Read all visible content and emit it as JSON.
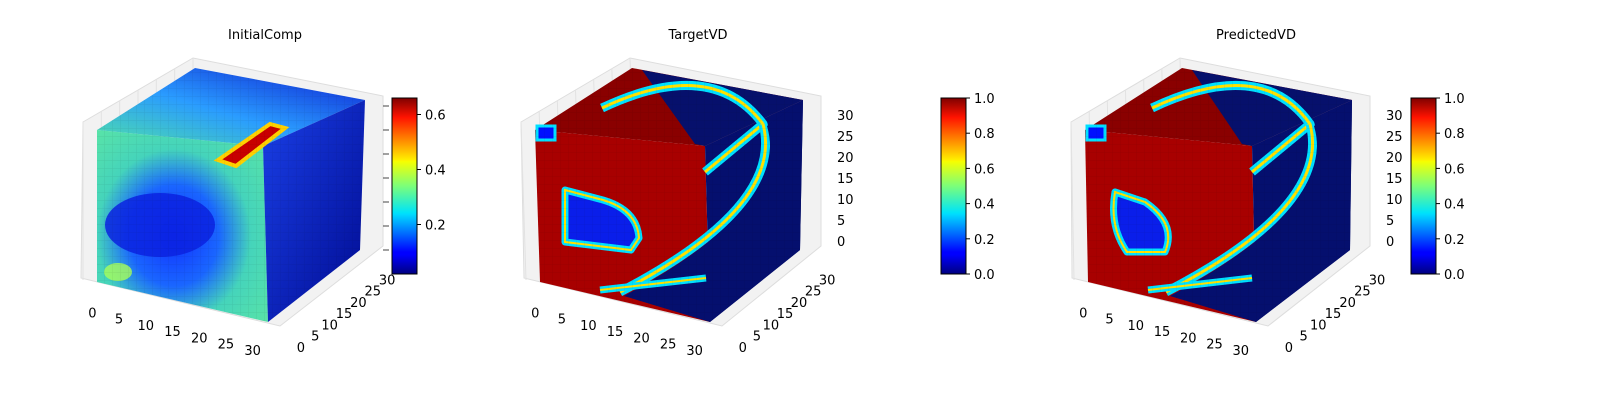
{
  "figure": {
    "panels": [
      {
        "title": "InitialComp",
        "x_ticks": [
          "0",
          "5",
          "10",
          "15",
          "20",
          "25",
          "30"
        ],
        "y_ticks": [
          "0",
          "5",
          "10",
          "15",
          "20",
          "25",
          "30"
        ],
        "z_ticks": [],
        "colorbar": {
          "ticks": [
            "0.2",
            "0.4",
            "0.6"
          ]
        }
      },
      {
        "title": "TargetVD",
        "x_ticks": [
          "0",
          "5",
          "10",
          "15",
          "20",
          "25",
          "30"
        ],
        "y_ticks": [
          "0",
          "5",
          "10",
          "15",
          "20",
          "25",
          "30"
        ],
        "z_ticks": [
          "0",
          "5",
          "10",
          "15",
          "20",
          "25",
          "30"
        ],
        "colorbar": {
          "ticks": [
            "0.0",
            "0.2",
            "0.4",
            "0.6",
            "0.8",
            "1.0"
          ]
        }
      },
      {
        "title": "PredictedVD",
        "x_ticks": [
          "0",
          "5",
          "10",
          "15",
          "20",
          "25",
          "30"
        ],
        "y_ticks": [
          "0",
          "5",
          "10",
          "15",
          "20",
          "25",
          "30"
        ],
        "z_ticks": [
          "0",
          "5",
          "10",
          "15",
          "20",
          "25",
          "30"
        ],
        "colorbar": {
          "ticks": [
            "0.0",
            "0.2",
            "0.4",
            "0.6",
            "0.8",
            "1.0"
          ]
        }
      }
    ]
  },
  "chart_data": [
    {
      "type": "heatmap",
      "subtype": "3d-voxel-cube",
      "title": "InitialComp",
      "colormap": "jet",
      "axis_ranges": {
        "x": [
          0,
          32
        ],
        "y": [
          0,
          32
        ],
        "z": [
          0,
          32
        ]
      },
      "colorbar_range": [
        0.02,
        0.66
      ],
      "colorbar_ticks": [
        0.2,
        0.4,
        0.6
      ],
      "grid": true
    },
    {
      "type": "heatmap",
      "subtype": "3d-voxel-cube",
      "title": "TargetVD",
      "colormap": "jet",
      "axis_ranges": {
        "x": [
          0,
          32
        ],
        "y": [
          0,
          32
        ],
        "z": [
          0,
          32
        ]
      },
      "colorbar_range": [
        0.0,
        1.0
      ],
      "colorbar_ticks": [
        0.0,
        0.2,
        0.4,
        0.6,
        0.8,
        1.0
      ],
      "grid": true
    },
    {
      "type": "heatmap",
      "subtype": "3d-voxel-cube",
      "title": "PredictedVD",
      "colormap": "jet",
      "axis_ranges": {
        "x": [
          0,
          32
        ],
        "y": [
          0,
          32
        ],
        "z": [
          0,
          32
        ]
      },
      "colorbar_range": [
        0.0,
        1.0
      ],
      "colorbar_ticks": [
        0.0,
        0.2,
        0.4,
        0.6,
        0.8,
        1.0
      ],
      "grid": true
    }
  ]
}
